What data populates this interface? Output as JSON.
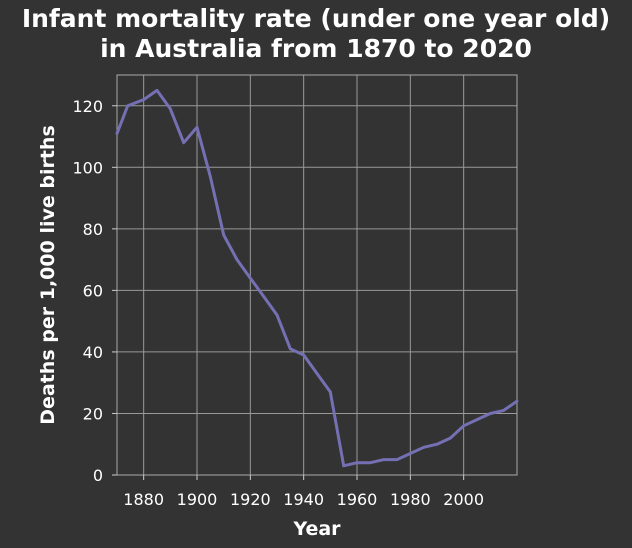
{
  "chart_data": {
    "type": "line",
    "title_lines": [
      "Infant mortality rate (under one year old)",
      "in Australia from 1870 to 2020"
    ],
    "xlabel": "Year",
    "ylabel": "Deaths per 1,000 live births",
    "xlim": [
      1870,
      2020
    ],
    "ylim": [
      0,
      130
    ],
    "xticks": [
      1880,
      1900,
      1920,
      1940,
      1960,
      1980,
      2000
    ],
    "yticks": [
      0,
      20,
      40,
      60,
      80,
      100,
      120
    ],
    "grid": true,
    "legend": "none",
    "line_color": "#7570b3",
    "background_color": "#333333",
    "grid_color": "#999999",
    "series": [
      {
        "x": [
          1870,
          1874,
          1880,
          1885,
          1890,
          1895,
          1900,
          1905,
          1910,
          1915,
          1920,
          1925,
          1930,
          1935,
          1940,
          1945,
          1950,
          1955,
          1960,
          1965,
          1970,
          1975,
          1980,
          1985,
          1990,
          1995,
          2000,
          2005,
          2010,
          2015,
          2020
        ],
        "y": [
          111,
          120,
          122,
          125,
          119,
          108,
          113,
          97,
          78,
          70,
          64,
          58,
          52,
          41,
          39,
          33,
          27,
          3,
          4,
          4,
          5,
          5,
          7,
          9,
          10,
          12,
          16,
          18,
          20,
          21,
          24
        ]
      }
    ]
  }
}
